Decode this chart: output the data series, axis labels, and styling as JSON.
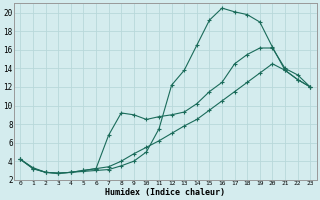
{
  "xlabel": "Humidex (Indice chaleur)",
  "bg_color": "#d4ecee",
  "grid_color": "#b8d8da",
  "line_color": "#1a6b5a",
  "xlim": [
    -0.5,
    23.5
  ],
  "ylim": [
    2,
    21
  ],
  "xticks": [
    0,
    1,
    2,
    3,
    4,
    5,
    6,
    7,
    8,
    9,
    10,
    11,
    12,
    13,
    14,
    15,
    16,
    17,
    18,
    19,
    20,
    21,
    22,
    23
  ],
  "yticks": [
    2,
    4,
    6,
    8,
    10,
    12,
    14,
    16,
    18,
    20
  ],
  "line1_x": [
    0,
    1,
    2,
    3,
    4,
    5,
    6,
    7,
    8,
    9,
    10,
    11,
    12,
    13,
    14,
    15,
    16,
    17,
    18,
    19,
    20,
    21,
    22,
    23
  ],
  "line1_y": [
    4.2,
    3.3,
    2.8,
    2.7,
    2.8,
    2.9,
    3.0,
    3.1,
    3.5,
    4.0,
    5.0,
    7.5,
    12.2,
    13.8,
    16.5,
    19.2,
    20.5,
    20.1,
    19.8,
    19.0,
    16.3,
    13.8,
    12.8,
    12.0
  ],
  "line2_x": [
    0,
    1,
    2,
    3,
    4,
    5,
    6,
    7,
    8,
    9,
    10,
    11,
    12,
    13,
    14,
    15,
    16,
    17,
    18,
    19,
    20,
    21,
    22,
    23
  ],
  "line2_y": [
    4.2,
    3.2,
    2.8,
    2.7,
    2.8,
    3.0,
    3.2,
    6.8,
    9.2,
    9.0,
    8.5,
    8.8,
    9.0,
    9.3,
    10.2,
    11.5,
    12.5,
    14.5,
    15.5,
    16.2,
    16.2,
    14.0,
    13.3,
    12.0
  ],
  "line3_x": [
    0,
    1,
    2,
    3,
    4,
    5,
    6,
    7,
    8,
    9,
    10,
    11,
    12,
    13,
    14,
    15,
    16,
    17,
    18,
    19,
    20,
    21,
    22,
    23
  ],
  "line3_y": [
    4.2,
    3.2,
    2.8,
    2.7,
    2.8,
    3.0,
    3.2,
    3.4,
    4.0,
    4.8,
    5.5,
    6.2,
    7.0,
    7.8,
    8.5,
    9.5,
    10.5,
    11.5,
    12.5,
    13.5,
    14.5,
    13.8,
    12.8,
    12.0
  ]
}
